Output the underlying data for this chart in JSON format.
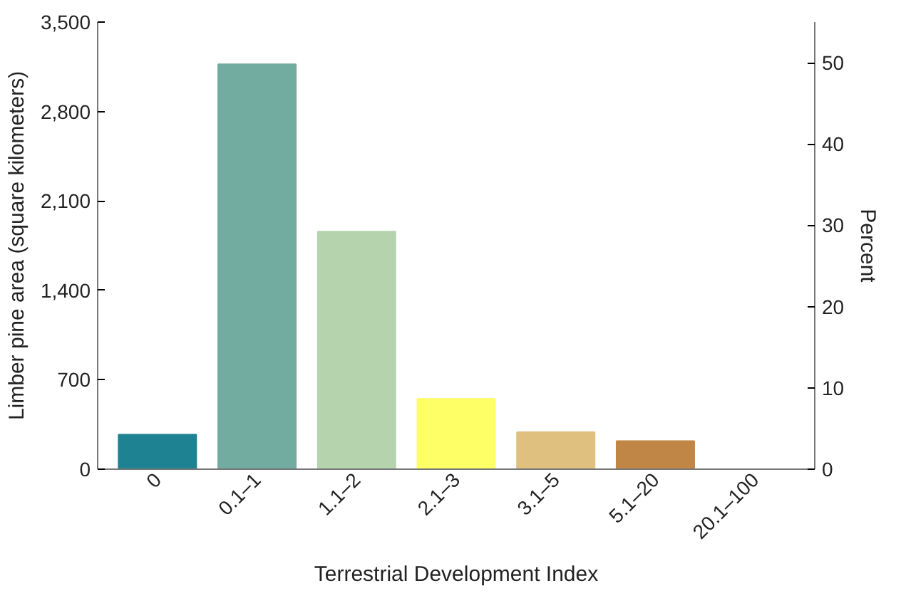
{
  "chart_data": {
    "type": "bar",
    "xlabel": "Terrestrial Development Index",
    "ylabel": "Limber pine area (square kilometers)",
    "y2label": "Percent",
    "categories": [
      "0",
      "0.1–1",
      "1.1–2",
      "2.1–3",
      "3.1–5",
      "5.1–20",
      "20.1–100"
    ],
    "values": [
      270,
      3170,
      1860,
      550,
      290,
      220,
      0
    ],
    "colors": [
      "#1f8293",
      "#72ab9f",
      "#b5d4ad",
      "#fefe66",
      "#dfc07f",
      "#c08645",
      "#c08645"
    ],
    "ylim": [
      0,
      3500
    ],
    "yticks": [
      0,
      {
        "value": 700,
        "label": "700"
      },
      {
        "value": 1400,
        "label": "1,400"
      },
      {
        "value": 2100,
        "label": "2,100"
      },
      {
        "value": 2800,
        "label": "2,800"
      },
      {
        "value": 3500,
        "label": "3,500"
      }
    ],
    "y2lim": [
      0,
      55
    ],
    "y2ticks": [
      0,
      10,
      20,
      30,
      40,
      50
    ],
    "grid": false
  }
}
